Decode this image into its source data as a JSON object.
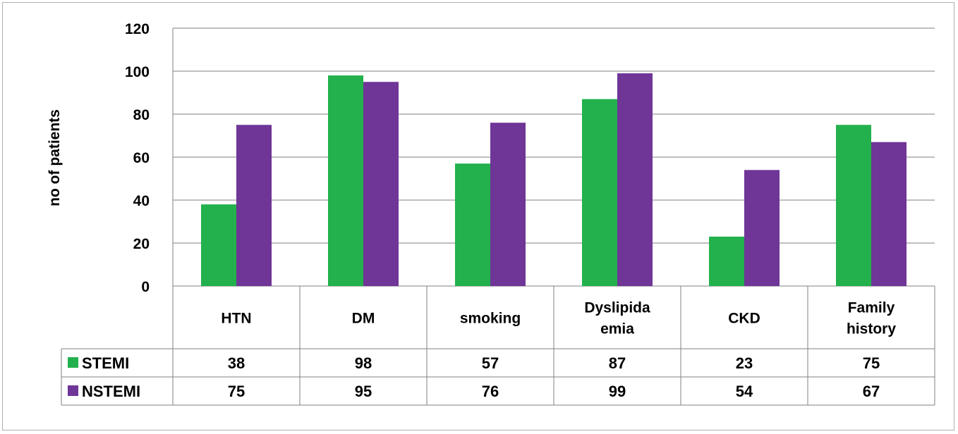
{
  "chart_data": {
    "type": "bar",
    "ylabel": "no of patients",
    "ylim": [
      0,
      120
    ],
    "yticks": [
      "0",
      "20",
      "40",
      "60",
      "80",
      "100",
      "120"
    ],
    "grid": true,
    "categories": [
      [
        "HTN"
      ],
      [
        "DM"
      ],
      [
        "smoking"
      ],
      [
        "Dyslipida",
        "emia"
      ],
      [
        "CKD"
      ],
      [
        "Family",
        "history"
      ]
    ],
    "series": [
      {
        "name": "STEMI",
        "color": "#22b14c",
        "values": [
          38,
          98,
          57,
          87,
          23,
          75
        ]
      },
      {
        "name": "NSTEMI",
        "color": "#6f3597",
        "values": [
          75,
          95,
          76,
          99,
          54,
          67
        ]
      }
    ],
    "legend": "data-table"
  }
}
